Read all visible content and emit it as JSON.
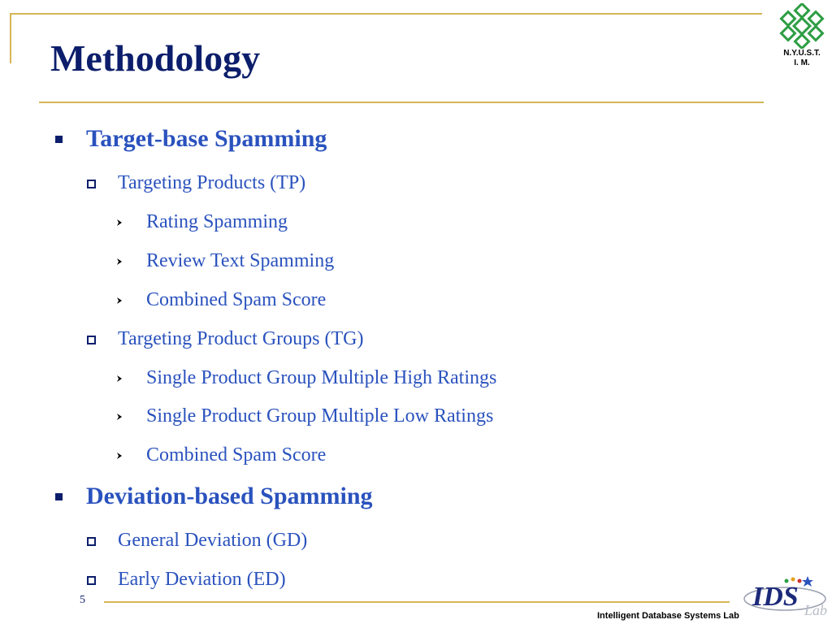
{
  "slide": {
    "title": "Methodology",
    "page_number": "5",
    "footer_text": "Intelligent Database Systems Lab",
    "institution_caption_line1": "N.Y.U.S.T.",
    "institution_caption_line2": "I. M.",
    "ids_logo_text": "IDS",
    "ids_logo_sub": "Lab",
    "colors": {
      "title": "#0c1e6b",
      "body": "#2a52be",
      "accent_rule": "#d6b656",
      "logo_green": "#2e9e44"
    }
  },
  "outline": [
    {
      "level": 1,
      "text": "Target-base Spamming"
    },
    {
      "level": 2,
      "text": "Targeting Products (TP)"
    },
    {
      "level": 3,
      "text": "Rating Spamming"
    },
    {
      "level": 3,
      "text": "Review Text Spamming"
    },
    {
      "level": 3,
      "text": "Combined Spam Score"
    },
    {
      "level": 2,
      "text": "Targeting Product Groups (TG)"
    },
    {
      "level": 3,
      "text": "Single Product Group Multiple High Ratings"
    },
    {
      "level": 3,
      "text": "Single Product Group Multiple Low Ratings"
    },
    {
      "level": 3,
      "text": "Combined Spam Score"
    },
    {
      "level": 1,
      "text": "Deviation-based Spamming"
    },
    {
      "level": 2,
      "text": "General Deviation (GD)"
    },
    {
      "level": 2,
      "text": "Early Deviation (ED)"
    }
  ]
}
